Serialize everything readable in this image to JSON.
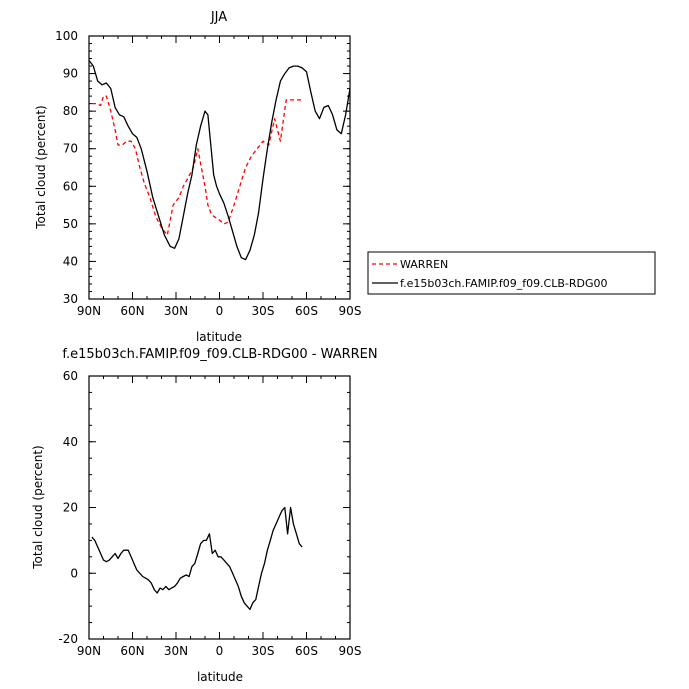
{
  "chart_data": [
    {
      "type": "line",
      "title": "JJA",
      "xlabel": "latitude",
      "ylabel": "Total cloud (percent)",
      "xlim": [
        90,
        -90
      ],
      "ylim": [
        30,
        100
      ],
      "x_ticks": [
        90,
        60,
        30,
        0,
        -30,
        -60,
        -90
      ],
      "x_tick_labels": [
        "90N",
        "60N",
        "30N",
        "0",
        "30S",
        "60S",
        "90S"
      ],
      "y_ticks": [
        30,
        40,
        50,
        60,
        70,
        80,
        90,
        100
      ],
      "y_tick_labels": [
        "30",
        "40",
        "50",
        "60",
        "70",
        "80",
        "90",
        "100"
      ],
      "grid": false,
      "legend_placement": "right",
      "series": [
        {
          "name": "WARREN",
          "color": "#ff0000",
          "style": "dashed",
          "x": [
            88,
            85,
            82,
            80,
            78,
            75,
            72,
            70,
            67,
            64,
            61,
            58,
            55,
            52,
            48,
            44,
            40,
            36,
            32,
            28,
            25,
            22,
            18,
            15,
            12,
            10,
            8,
            6,
            4,
            2,
            0,
            -3,
            -6,
            -10,
            -14,
            -18,
            -22,
            -26,
            -30,
            -34,
            -38,
            -42,
            -46,
            -50,
            -54,
            -55,
            -57,
            -58
          ],
          "y": [
            82,
            82,
            81.5,
            84,
            84,
            80,
            75,
            71,
            71,
            72,
            72,
            70,
            65,
            61,
            57,
            52,
            49,
            47,
            55,
            57,
            60,
            62,
            65,
            70,
            64,
            60,
            55,
            53,
            52,
            51.5,
            51,
            50,
            50.5,
            55,
            60,
            65,
            68,
            70,
            72,
            71,
            78,
            72,
            83,
            83,
            83,
            83,
            83,
            83
          ]
        },
        {
          "name": "f.e15b03ch.FAMIP.f09_f09.CLB-RDG00",
          "color": "#000000",
          "style": "solid",
          "x": [
            90,
            87,
            84,
            81,
            78,
            75,
            72,
            69,
            66,
            63,
            60,
            57,
            54,
            50,
            46,
            42,
            38,
            34,
            31,
            28,
            25,
            22,
            19,
            16,
            13,
            10,
            8,
            6,
            4,
            2,
            0,
            -3,
            -6,
            -9,
            -12,
            -15,
            -18,
            -21,
            -24,
            -27,
            -30,
            -33,
            -36,
            -39,
            -42,
            -45,
            -48,
            -51,
            -54,
            -57,
            -60,
            -63,
            -66,
            -69,
            -72,
            -75,
            -78,
            -81,
            -84,
            -87,
            -90
          ],
          "y": [
            93.5,
            92,
            88,
            87,
            87.5,
            86,
            81,
            79,
            78.5,
            76,
            74,
            73,
            70,
            64,
            57,
            52,
            47,
            44,
            43.5,
            46,
            52,
            58,
            63,
            71,
            76,
            80,
            79,
            71,
            63,
            60,
            58,
            55.5,
            52,
            48,
            44,
            41,
            40.5,
            43,
            47,
            53,
            62,
            70,
            77,
            83,
            88,
            90,
            91.5,
            92,
            92,
            91.5,
            90.5,
            85,
            80,
            78,
            81,
            81.5,
            79,
            75,
            74,
            79,
            86
          ]
        }
      ]
    },
    {
      "type": "line",
      "title": "f.e15b03ch.FAMIP.f09_f09.CLB-RDG00 - WARREN",
      "xlabel": "latitude",
      "ylabel": "Total cloud (percent)",
      "xlim": [
        90,
        -90
      ],
      "ylim": [
        -20,
        60
      ],
      "x_ticks": [
        90,
        60,
        30,
        0,
        -30,
        -60,
        -90
      ],
      "x_tick_labels": [
        "90N",
        "60N",
        "30N",
        "0",
        "30S",
        "60S",
        "90S"
      ],
      "y_ticks": [
        -20,
        0,
        20,
        40,
        60
      ],
      "y_tick_labels": [
        "-20",
        "0",
        "20",
        "40",
        "60"
      ],
      "grid": false,
      "series": [
        {
          "color": "#000000",
          "style": "solid",
          "x": [
            88,
            86,
            84,
            82,
            80,
            78,
            76,
            74,
            72,
            70,
            68,
            66,
            63,
            61,
            59,
            57,
            55,
            53,
            51,
            49,
            47,
            45,
            43,
            41,
            39,
            37,
            35,
            33,
            31,
            29,
            27,
            25,
            23,
            21,
            19,
            17,
            15,
            13,
            11,
            9,
            7,
            5,
            3,
            1,
            -1,
            -3,
            -5,
            -7,
            -9,
            -11,
            -13,
            -15,
            -17,
            -19,
            -21,
            -23,
            -25,
            -27,
            -29,
            -31,
            -33,
            -35,
            -37,
            -39,
            -41,
            -43,
            -45,
            -47,
            -49,
            -51,
            -53,
            -55,
            -57
          ],
          "y": [
            11,
            10,
            8,
            6,
            4,
            3.5,
            4,
            5,
            6,
            4.5,
            6,
            7,
            7,
            5,
            3,
            1,
            0,
            -1,
            -1.5,
            -2,
            -3,
            -5,
            -6,
            -4.5,
            -5,
            -4,
            -5,
            -4.5,
            -4,
            -3,
            -1.5,
            -1,
            -0.5,
            -1,
            2,
            3,
            6,
            9,
            10,
            10,
            12,
            6,
            7,
            5,
            5,
            4,
            3,
            2,
            0,
            -2,
            -4,
            -7,
            -9,
            -10,
            -11,
            -9,
            -8,
            -4,
            0,
            3,
            7,
            10,
            13,
            15,
            17,
            19,
            20,
            12,
            20,
            15,
            12,
            9,
            8
          ]
        }
      ]
    }
  ]
}
